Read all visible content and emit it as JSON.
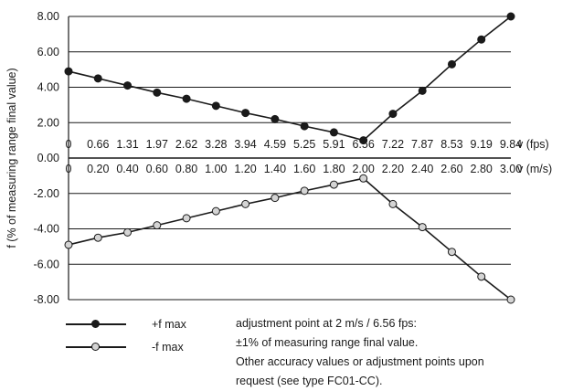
{
  "chart_data": {
    "type": "line",
    "ylabel": "f (% of measuring range final value)",
    "y_ticks": [
      "8.00",
      "6.00",
      "4.00",
      "2.00",
      "0.00",
      "-2.00",
      "-4.00",
      "-6.00",
      "-8.00"
    ],
    "ylim": [
      -8,
      8
    ],
    "grid": true,
    "x_axes": [
      {
        "unit_label": "v (fps)",
        "ticks": [
          "0",
          "0.66",
          "1.31",
          "1.97",
          "2.62",
          "3.28",
          "3.94",
          "4.59",
          "5.25",
          "5.91",
          "6.56",
          "7.22",
          "7.87",
          "8.53",
          "9.19",
          "9.84"
        ]
      },
      {
        "unit_label": "v (m/s)",
        "ticks": [
          "0",
          "0.20",
          "0.40",
          "0.60",
          "0.80",
          "1.00",
          "1.20",
          "1.40",
          "1.60",
          "1.80",
          "2.00",
          "2.20",
          "2.40",
          "2.60",
          "2.80",
          "3.00"
        ]
      }
    ],
    "x": [
      0,
      0.2,
      0.4,
      0.6,
      0.8,
      1.0,
      1.2,
      1.4,
      1.6,
      1.8,
      2.0,
      2.2,
      2.4,
      2.6,
      2.8,
      3.0
    ],
    "xlim": [
      0,
      3.0
    ],
    "series": [
      {
        "name": "+f max",
        "marker_color": "#1a1a1a",
        "values": [
          4.9,
          4.5,
          4.1,
          3.7,
          3.35,
          2.95,
          2.55,
          2.2,
          1.8,
          1.45,
          1.0,
          2.5,
          3.8,
          5.3,
          6.7,
          8.0
        ]
      },
      {
        "name": "-f max",
        "marker_color": "#d4d4d4",
        "values": [
          -4.9,
          -4.5,
          -4.2,
          -3.8,
          -3.4,
          -3.0,
          -2.6,
          -2.25,
          -1.85,
          -1.5,
          -1.15,
          -2.6,
          -3.9,
          -5.3,
          -6.7,
          -8.0
        ]
      }
    ]
  },
  "legend": {
    "plus_label": "+f max",
    "minus_label": "-f max"
  },
  "notes": {
    "line1": "adjustment point at 2 m/s / 6.56 fps:",
    "line2": "±1% of measuring range final value.",
    "line3": "Other accuracy values or adjustment points upon",
    "line4": "request (see type FC01-CC)."
  }
}
